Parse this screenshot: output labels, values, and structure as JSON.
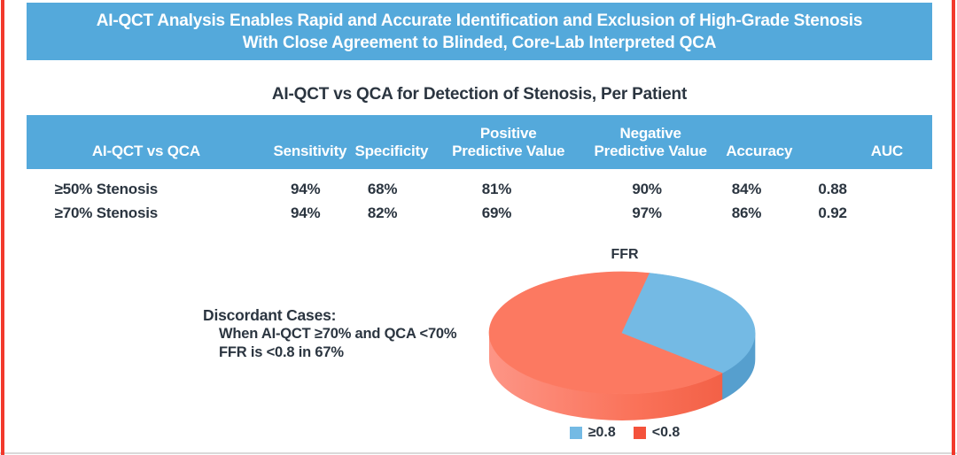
{
  "banner": {
    "line1": "AI-QCT Analysis Enables Rapid and Accurate Identification and Exclusion of High-Grade Stenosis",
    "line2": "With Close Agreement to Blinded, Core-Lab Interpreted QCA"
  },
  "discordant": {
    "heading": "Discordant Cases:",
    "line1": "When AI-QCT ≥70% and QCA <70%",
    "line2": "FFR is <0.8 in 67%"
  },
  "chart_data": [
    {
      "type": "table",
      "title": "AI-QCT vs QCA for Detection of Stenosis, Per Patient",
      "columns": [
        "AI-QCT vs QCA",
        "Sensitivity",
        "Specificity",
        "Positive\nPredictive Value",
        "Negative\nPredictive Value",
        "Accuracy",
        "AUC"
      ],
      "rows": [
        [
          "≥50% Stenosis",
          "94%",
          "68%",
          "81%",
          "90%",
          "84%",
          "0.88"
        ],
        [
          "≥70% Stenosis",
          "94%",
          "82%",
          "69%",
          "97%",
          "86%",
          "0.92"
        ]
      ]
    },
    {
      "type": "pie",
      "title": "FFR",
      "labels": [
        "≥0.8",
        "<0.8"
      ],
      "values": [
        33,
        67
      ],
      "unit": "%",
      "colors": [
        "#74BAE4",
        "#FC7961"
      ],
      "legend_position": "bottom",
      "style": "3d",
      "start_angle_deg": 78
    }
  ],
  "colors": {
    "banner_blue": "#54A9DB",
    "frame_red": "#F2392C",
    "text_dark": "#2B3540",
    "pie_blue": "#74BAE4",
    "pie_blue_side": "#569FCE",
    "pie_red": "#FC7961",
    "pie_red_side_light": "#FD9586",
    "pie_red_side_dark": "#F05A40"
  }
}
